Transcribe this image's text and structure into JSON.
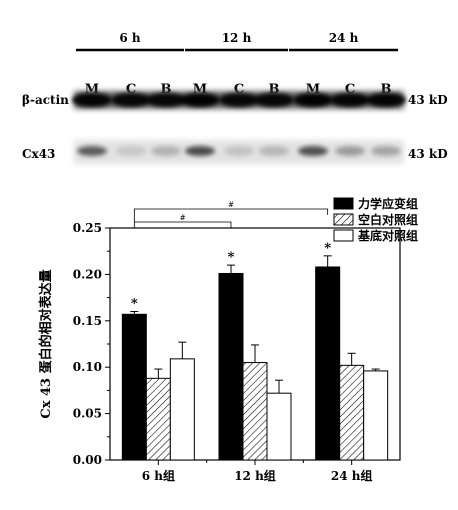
{
  "blot": {
    "groups": [
      "6 h",
      "12 h",
      "24 h"
    ],
    "lanes": [
      "M",
      "C",
      "B"
    ],
    "rows": [
      {
        "label": "β-actin",
        "kd": "43 kD",
        "intensity": [
          0.95,
          0.92,
          0.93,
          0.97,
          0.92,
          0.93,
          0.97,
          0.94,
          0.95
        ]
      },
      {
        "label": "Cx43",
        "kd": "43 kD",
        "intensity": [
          0.62,
          0.12,
          0.22,
          0.7,
          0.14,
          0.2,
          0.68,
          0.32,
          0.28
        ]
      }
    ]
  },
  "chart_data": {
    "type": "bar",
    "categories": [
      "6 h组",
      "12 h组",
      "24 h组"
    ],
    "ylabel": "Cx 43 蛋白的相对表达量",
    "xlabel": "",
    "ylim": [
      0,
      0.25
    ],
    "yticks": [
      "0.00",
      "0.05",
      "0.10",
      "0.15",
      "0.20",
      "0.25"
    ],
    "grid": false,
    "legend_position": "top-right",
    "series": [
      {
        "name": "力学应变组",
        "values": [
          0.157,
          0.201,
          0.208
        ],
        "errors": [
          0.003,
          0.009,
          0.012
        ],
        "fill": "solid",
        "color": "#000000"
      },
      {
        "name": "空白对照组",
        "values": [
          0.088,
          0.105,
          0.102
        ],
        "errors": [
          0.01,
          0.019,
          0.013
        ],
        "fill": "hatched",
        "color": "#ffffff"
      },
      {
        "name": "基底对照组",
        "values": [
          0.109,
          0.072,
          0.096
        ],
        "errors": [
          0.018,
          0.014,
          0.002
        ],
        "fill": "open",
        "color": "#ffffff"
      }
    ],
    "annotations": {
      "star": "*",
      "hash": "#",
      "star_series": 0
    }
  }
}
